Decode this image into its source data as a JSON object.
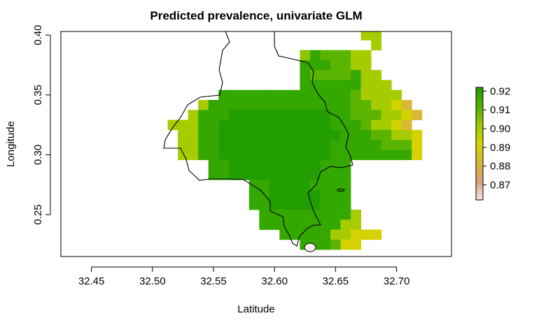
{
  "chart_data": {
    "type": "heatmap",
    "title": "Predicted prevalence, univariate GLM",
    "xlabel": "Latitude",
    "ylabel": "Longitude",
    "xlim": [
      32.425,
      32.745
    ],
    "ylim": [
      0.215,
      0.403
    ],
    "x_ticks": [
      32.45,
      32.5,
      32.55,
      32.6,
      32.65,
      32.7
    ],
    "x_tick_labels": [
      "32.45",
      "32.50",
      "32.55",
      "32.60",
      "32.65",
      "32.70"
    ],
    "y_ticks": [
      0.25,
      0.3,
      0.35,
      0.4
    ],
    "y_tick_labels": [
      "0.25",
      "0.30",
      "0.35",
      "0.40"
    ],
    "cell_size": 0.00833,
    "grid_x0": 32.50417,
    "grid_y0": 0.22083,
    "rows": [
      "...................ooyy.....",
      "..................ooyo......",
      "....................yo......",
      "....................ll......",
      ".....................l......",
      "..............gGmmmll.......",
      "..............GGGmmll.......",
      "..............GmmmmGll......",
      "..............GGGGGGlll.....",
      "......GGGGGGGGGGGGGmllll....",
      "....lGGGGGGGGGGGGGGmmllyo...",
      "...lGGGDDDDDDDDDDGGmmmllyo..",
      ".lllGGDDDDDDDDDDDGGGmllyo...",
      "..llGGDDDDDDDDDDDDGGGmmlly..",
      "..llGGDDDDDDDDDDDGGGGGmmmy..",
      "..llGGDDDDDDDDDDDGGGGGGGGy..",
      ".....GGDDDDDDDDDGGG.........",
      ".....GGDDDDDDDDDGGG.........",
      ".........GGDDDDGGGG.........",
      ".........GGDDDDDGGG.........",
      ".........GGDDDDDGGG.........",
      "..........GGGGGGGGGl........",
      "..........GGGGGGGGll........",
      "............GGGGGllyyy......",
      "..............GGGmyy........"
    ],
    "palette": {
      "D": "#229e00",
      "G": "#35a800",
      "m": "#5bb400",
      "g": "#8cc400",
      "l": "#a6cc00",
      "y": "#d4d200",
      "o": "#d9b838",
      "a": "#dc9d48"
    },
    "legend": {
      "placement": "right",
      "labels": [
        "0.92",
        "0.91",
        "0.90",
        "0.89",
        "0.88",
        "0.87"
      ],
      "values": [
        0.92,
        0.91,
        0.9,
        0.89,
        0.88,
        0.87
      ],
      "range": [
        0.862,
        0.922
      ],
      "colors": [
        "#f0e4e4",
        "#dca07a",
        "#d6b82e",
        "#d2d400",
        "#9ec800",
        "#4fb000",
        "#1f9c00"
      ]
    },
    "grid": false
  }
}
